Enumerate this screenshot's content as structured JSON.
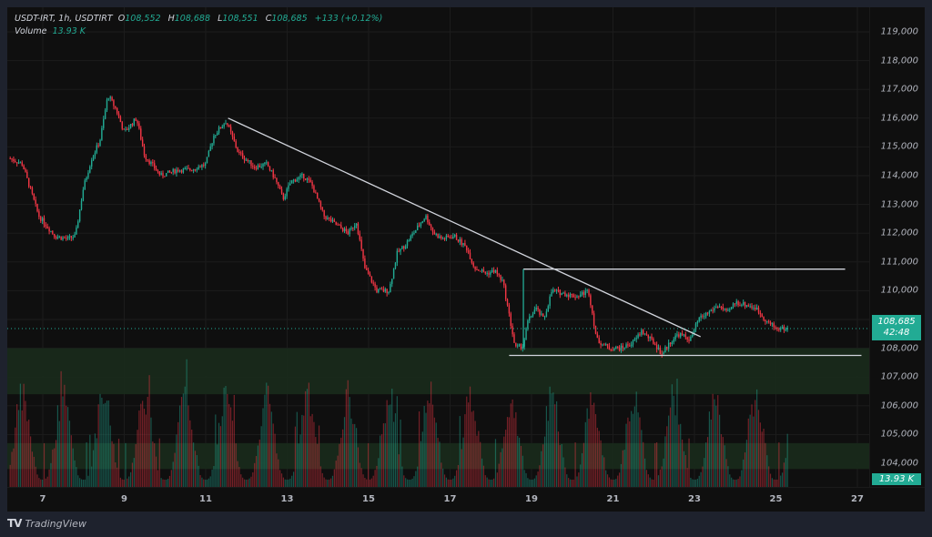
{
  "legend": {
    "symbol": "USDT-IRT, 1h, USDTIRT",
    "open_label": "O",
    "open": "108,552",
    "high_label": "H",
    "high": "108,688",
    "low_label": "L",
    "low": "108,551",
    "close_label": "C",
    "close": "108,685",
    "change": "+133 (+0.12%)",
    "volume_label": "Volume",
    "volume": "13.93 K"
  },
  "price_tag": {
    "price": "108,685",
    "countdown": "42:48"
  },
  "volume_tag": "13.93 K",
  "footer": {
    "logo": "TV",
    "brand": "TradingView"
  },
  "colors": {
    "up": "#22ab94",
    "down": "#f23645",
    "zone": "#1a2b1c",
    "line": "#d1d4dc",
    "accent": "#22ab94"
  },
  "chart_data": {
    "type": "candlestick",
    "title": "USDT-IRT, 1h, USDTIRT",
    "xlabel": "",
    "ylabel": "",
    "ylim": [
      103500,
      119500
    ],
    "y_ticks": [
      104000,
      105000,
      106000,
      107000,
      108000,
      109000,
      110000,
      111000,
      112000,
      113000,
      114000,
      115000,
      116000,
      117000,
      118000,
      119000
    ],
    "y_tick_labels": [
      "104,000",
      "105,000",
      "106,000",
      "107,000",
      "108,000",
      "109,000",
      "110,000",
      "111,000",
      "112,000",
      "113,000",
      "114,000",
      "115,000",
      "116,000",
      "117,000",
      "118,000",
      "119,000"
    ],
    "x_ticks": [
      "7",
      "9",
      "11",
      "13",
      "15",
      "17",
      "19",
      "21",
      "23",
      "25",
      "27"
    ],
    "x_range_days": [
      6.15,
      27.3
    ],
    "grid": true,
    "last": {
      "open": 108552,
      "high": 108688,
      "low": 108551,
      "close": 108685,
      "change": 133,
      "change_pct": 0.12,
      "volume": "13.93K"
    },
    "price_path": [
      [
        6.2,
        114600
      ],
      [
        6.5,
        114400
      ],
      [
        6.9,
        112600
      ],
      [
        7.3,
        111900
      ],
      [
        7.6,
        111800
      ],
      [
        7.8,
        111900
      ],
      [
        8.0,
        113600
      ],
      [
        8.2,
        114600
      ],
      [
        8.4,
        115200
      ],
      [
        8.6,
        116800
      ],
      [
        8.8,
        116300
      ],
      [
        9.0,
        115500
      ],
      [
        9.3,
        116000
      ],
      [
        9.5,
        114700
      ],
      [
        9.9,
        114000
      ],
      [
        10.3,
        114200
      ],
      [
        10.6,
        114200
      ],
      [
        11.0,
        114400
      ],
      [
        11.2,
        115400
      ],
      [
        11.5,
        115900
      ],
      [
        11.8,
        114800
      ],
      [
        12.2,
        114300
      ],
      [
        12.5,
        114400
      ],
      [
        12.7,
        113900
      ],
      [
        12.9,
        113200
      ],
      [
        13.1,
        113800
      ],
      [
        13.4,
        114000
      ],
      [
        13.6,
        113700
      ],
      [
        13.9,
        112600
      ],
      [
        14.2,
        112300
      ],
      [
        14.5,
        112000
      ],
      [
        14.7,
        112400
      ],
      [
        14.9,
        110800
      ],
      [
        15.2,
        110000
      ],
      [
        15.5,
        110000
      ],
      [
        15.7,
        111300
      ],
      [
        15.9,
        111600
      ],
      [
        16.2,
        112200
      ],
      [
        16.4,
        112600
      ],
      [
        16.6,
        112000
      ],
      [
        16.8,
        111800
      ],
      [
        17.1,
        111900
      ],
      [
        17.4,
        111500
      ],
      [
        17.6,
        110800
      ],
      [
        17.9,
        110600
      ],
      [
        18.1,
        110700
      ],
      [
        18.3,
        110300
      ],
      [
        18.6,
        108000
      ],
      [
        18.8,
        108100
      ],
      [
        18.9,
        108900
      ],
      [
        19.1,
        109400
      ],
      [
        19.3,
        109000
      ],
      [
        19.5,
        110000
      ],
      [
        19.8,
        109900
      ],
      [
        20.1,
        109800
      ],
      [
        20.4,
        110000
      ],
      [
        20.6,
        108300
      ],
      [
        20.9,
        108000
      ],
      [
        21.2,
        108000
      ],
      [
        21.5,
        108200
      ],
      [
        21.7,
        108600
      ],
      [
        22.0,
        108200
      ],
      [
        22.2,
        107800
      ],
      [
        22.4,
        108200
      ],
      [
        22.6,
        108500
      ],
      [
        22.9,
        108300
      ],
      [
        23.1,
        109000
      ],
      [
        23.4,
        109300
      ],
      [
        23.6,
        109500
      ],
      [
        23.8,
        109200
      ],
      [
        24.0,
        109600
      ],
      [
        24.3,
        109500
      ],
      [
        24.5,
        109400
      ],
      [
        24.8,
        108900
      ],
      [
        25.0,
        108700
      ],
      [
        25.3,
        108680
      ]
    ],
    "annotations": [
      {
        "type": "trendline",
        "from": [
          11.55,
          116000
        ],
        "to": [
          23.15,
          108400
        ]
      },
      {
        "type": "hline_segment",
        "price": 110750,
        "from": 18.8,
        "to": 26.7
      },
      {
        "type": "vline_segment",
        "x": 18.8,
        "from_price": 108000,
        "to_price": 110750
      },
      {
        "type": "hline_segment",
        "price": 107750,
        "from": 18.45,
        "to": 27.1
      },
      {
        "type": "zone",
        "from_price": 106400,
        "to_price": 108000
      },
      {
        "type": "zone",
        "from_price": 103800,
        "to_price": 104700
      }
    ],
    "last_price_line": 108685
  }
}
